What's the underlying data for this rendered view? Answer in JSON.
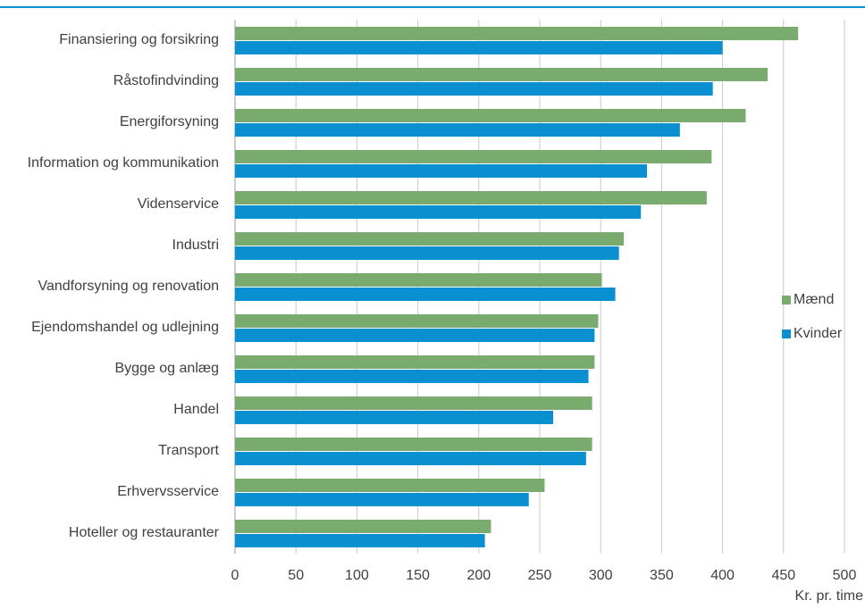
{
  "chart_data": {
    "type": "barh",
    "categories": [
      "Finansiering og forsikring",
      "Råstofindvinding",
      "Energiforsyning",
      "Information og kommunikation",
      "Videnservice",
      "Industri",
      "Vandforsyning og renovation",
      "Ejendomshandel og udlejning",
      "Bygge og anlæg",
      "Handel",
      "Transport",
      "Erhvervsservice",
      "Hoteller og restauranter"
    ],
    "series": [
      {
        "name": "Mænd",
        "color": "#7aab6e",
        "values": [
          462,
          437,
          419,
          391,
          387,
          319,
          301,
          298,
          295,
          293,
          293,
          254,
          210
        ]
      },
      {
        "name": "Kvinder",
        "color": "#0a90d0",
        "values": [
          400,
          392,
          365,
          338,
          333,
          315,
          312,
          295,
          290,
          261,
          288,
          241,
          205
        ]
      }
    ],
    "x_label": "Kr. pr. time",
    "xlim": [
      0,
      500
    ],
    "xticks": [
      0,
      50,
      100,
      150,
      200,
      250,
      300,
      350,
      400,
      450,
      500
    ],
    "grid": true,
    "legend": "right"
  }
}
